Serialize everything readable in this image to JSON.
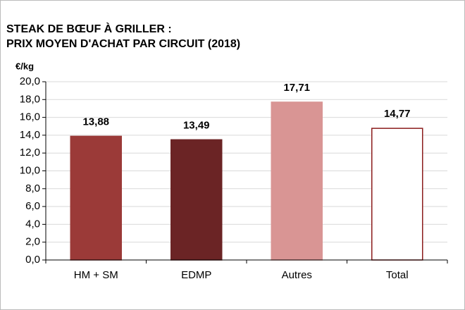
{
  "chart_data": {
    "type": "bar",
    "title": "STEAK DE BŒUF À GRILLER :",
    "subtitle": "PRIX MOYEN D'ACHAT PAR CIRCUIT (2018)",
    "ylabel": "€/kg",
    "categories": [
      "HM + SM",
      "EDMP",
      "Autres",
      "Total"
    ],
    "values": [
      13.88,
      13.49,
      17.71,
      14.77
    ],
    "value_labels": [
      "13,88",
      "13,49",
      "17,71",
      "14,77"
    ],
    "colors": [
      "#9b3a38",
      "#6b2425",
      "#d99594",
      "#ffffff"
    ],
    "edgecolors": [
      "#9b3a38",
      "#6b2425",
      "#d99594",
      "#8b1c1c"
    ],
    "ylim": [
      0,
      20
    ],
    "yticks": [
      {
        "value": 0,
        "label": "0,0"
      },
      {
        "value": 2,
        "label": "2,0"
      },
      {
        "value": 4,
        "label": "4,0"
      },
      {
        "value": 6,
        "label": "6,0"
      },
      {
        "value": 8,
        "label": "8,0"
      },
      {
        "value": 10,
        "label": "10,0"
      },
      {
        "value": 12,
        "label": "12,0"
      },
      {
        "value": 14,
        "label": "14,0"
      },
      {
        "value": 16,
        "label": "16,0"
      },
      {
        "value": 18,
        "label": "18,0"
      },
      {
        "value": 20,
        "label": "20,0"
      }
    ],
    "grid": true
  }
}
